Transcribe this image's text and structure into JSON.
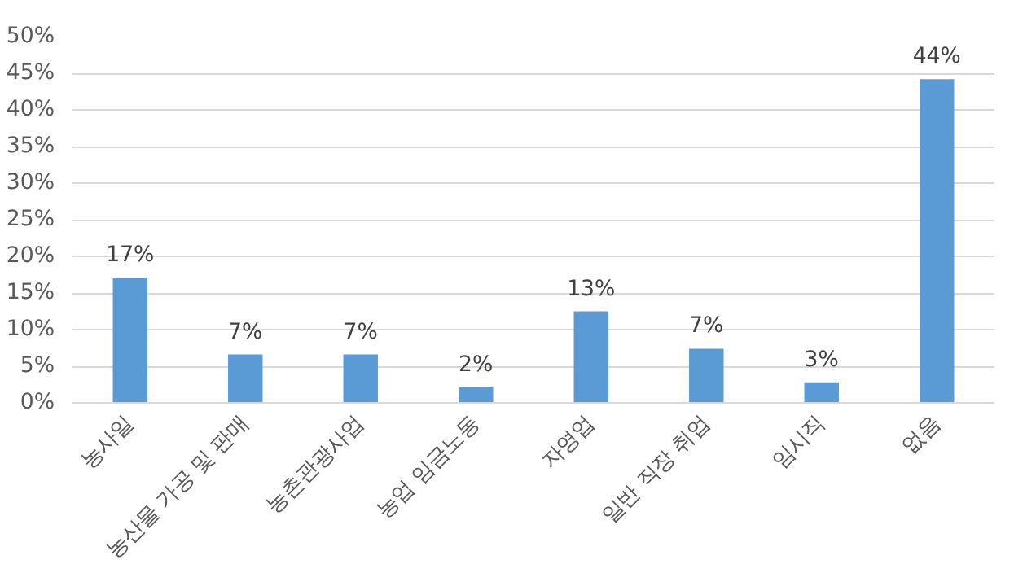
{
  "chart_data": {
    "type": "bar",
    "categories": [
      "농사일",
      "농산물 가공 및 판매",
      "농촌관광사업",
      "농업 임금노동",
      "자영업",
      "일반 직장 취업",
      "임시직",
      "없음"
    ],
    "values": [
      17.1,
      6.6,
      6.6,
      2.1,
      12.5,
      7.4,
      2.8,
      44.2
    ],
    "value_labels": [
      "17%",
      "7%",
      "7%",
      "2%",
      "13%",
      "7%",
      "3%",
      "44%"
    ],
    "color": "#5b9bd5",
    "ylim": [
      0,
      50
    ],
    "yticks": [
      {
        "value": 0,
        "label": "0%"
      },
      {
        "value": 5,
        "label": "5%"
      },
      {
        "value": 10,
        "label": "10%"
      },
      {
        "value": 15,
        "label": "15%"
      },
      {
        "value": 20,
        "label": "20%"
      },
      {
        "value": 25,
        "label": "25%"
      },
      {
        "value": 30,
        "label": "30%"
      },
      {
        "value": 35,
        "label": "35%"
      },
      {
        "value": 40,
        "label": "40%"
      },
      {
        "value": 45,
        "label": "45%"
      },
      {
        "value": 50,
        "label": "50%"
      }
    ],
    "grid": "y"
  }
}
